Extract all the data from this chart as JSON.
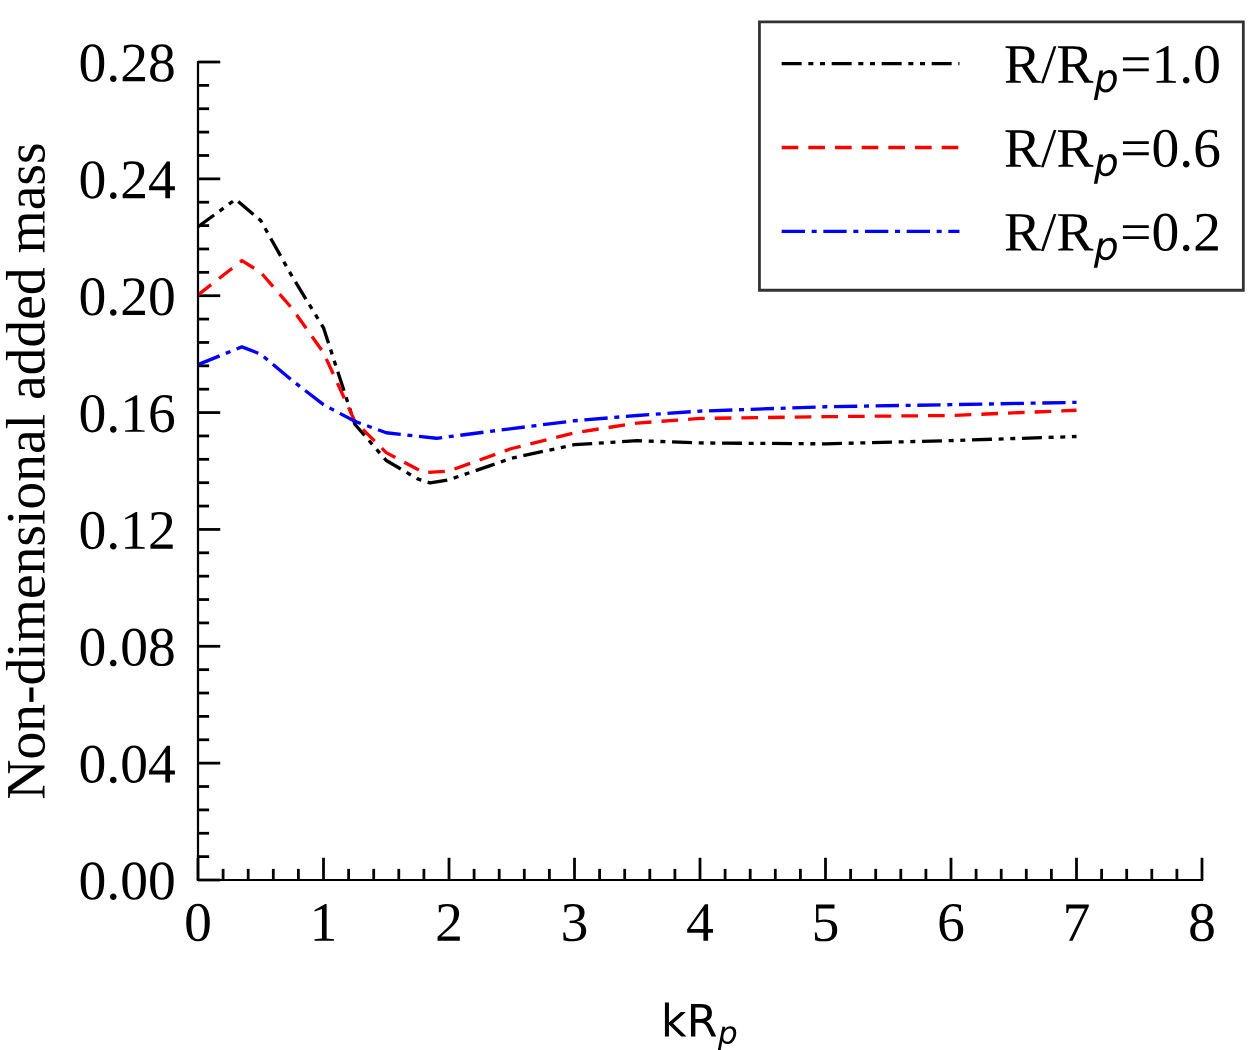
{
  "chart_data": {
    "type": "line",
    "xlabel": "kR$_{p}$",
    "ylabel": "Non-dimensional added mass",
    "series": [
      {
        "name": "R/R$_{p}$=1.0",
        "color": "#000000",
        "line_style": "dashdotdot",
        "x": [
          0,
          0.3,
          0.5,
          0.75,
          1,
          1.25,
          1.5,
          1.75,
          1.85,
          2,
          2.5,
          3,
          3.5,
          4,
          5,
          6,
          7
        ],
        "values": [
          0.2236,
          0.233,
          0.2257,
          0.2066,
          0.189,
          0.156,
          0.1436,
          0.1373,
          0.1359,
          0.137,
          0.1444,
          0.149,
          0.1504,
          0.1496,
          0.1493,
          0.1504,
          0.1518
        ]
      },
      {
        "name": "R/R$_{p}$=0.6",
        "color": "#ff0000",
        "line_style": "dashed",
        "x": [
          0,
          0.35,
          0.5,
          0.75,
          1,
          1.25,
          1.5,
          1.8,
          2,
          2.5,
          3,
          3.5,
          4,
          5,
          6,
          7
        ],
        "values": [
          0.2003,
          0.212,
          0.208,
          0.1956,
          0.1805,
          0.157,
          0.1463,
          0.1394,
          0.14,
          0.1477,
          0.1531,
          0.1564,
          0.158,
          0.1586,
          0.159,
          0.1608
        ]
      },
      {
        "name": "R/R$_{p}$=0.2",
        "color": "#0000ff",
        "line_style": "dashdot",
        "x": [
          0,
          0.35,
          0.5,
          0.75,
          1,
          1.25,
          1.5,
          1.9,
          2.5,
          3,
          3.5,
          4,
          5,
          6,
          7
        ],
        "values": [
          0.1764,
          0.1825,
          0.18,
          0.171,
          0.1627,
          0.157,
          0.1531,
          0.1512,
          0.1545,
          0.1572,
          0.159,
          0.1605,
          0.162,
          0.1627,
          0.1635
        ]
      }
    ],
    "xlim": [
      0,
      8
    ],
    "ylim": [
      0,
      0.28
    ],
    "xticks": [
      0,
      {
        "value": 0.2,
        "label": null
      },
      {
        "value": 0.4,
        "label": null
      },
      {
        "value": 0.6,
        "label": null
      },
      {
        "value": 0.8,
        "label": null
      },
      1,
      {
        "value": 1.2,
        "label": null
      },
      {
        "value": 1.4,
        "label": null
      },
      {
        "value": 1.6,
        "label": null
      },
      {
        "value": 1.8,
        "label": null
      },
      2,
      {
        "value": 2.2,
        "label": null
      },
      {
        "value": 2.4,
        "label": null
      },
      {
        "value": 2.6,
        "label": null
      },
      {
        "value": 2.8,
        "label": null
      },
      3,
      {
        "value": 3.2,
        "label": null
      },
      {
        "value": 3.4,
        "label": null
      },
      {
        "value": 3.6,
        "label": null
      },
      {
        "value": 3.8,
        "label": null
      },
      4,
      {
        "value": 4.2,
        "label": null
      },
      {
        "value": 4.4,
        "label": null
      },
      {
        "value": 4.6,
        "label": null
      },
      {
        "value": 4.8,
        "label": null
      },
      5,
      {
        "value": 5.2,
        "label": null
      },
      {
        "value": 5.4,
        "label": null
      },
      {
        "value": 5.6,
        "label": null
      },
      {
        "value": 5.8,
        "label": null
      },
      6,
      {
        "value": 6.2,
        "label": null
      },
      {
        "value": 6.4,
        "label": null
      },
      {
        "value": 6.6,
        "label": null
      },
      {
        "value": 6.8,
        "label": null
      },
      7,
      {
        "value": 7.2,
        "label": null
      },
      {
        "value": 7.4,
        "label": null
      },
      {
        "value": 7.6,
        "label": null
      },
      {
        "value": 7.8,
        "label": null
      },
      8
    ],
    "yticks": [
      {
        "value": 0,
        "label": "0.00"
      },
      {
        "value": 0.008,
        "label": null
      },
      {
        "value": 0.016,
        "label": null
      },
      {
        "value": 0.024,
        "label": null
      },
      {
        "value": 0.032,
        "label": null
      },
      {
        "value": 0.04,
        "label": "0.04"
      },
      {
        "value": 0.048,
        "label": null
      },
      {
        "value": 0.056,
        "label": null
      },
      {
        "value": 0.064,
        "label": null
      },
      {
        "value": 0.072,
        "label": null
      },
      {
        "value": 0.08,
        "label": "0.08"
      },
      {
        "value": 0.088,
        "label": null
      },
      {
        "value": 0.096,
        "label": null
      },
      {
        "value": 0.104,
        "label": null
      },
      {
        "value": 0.112,
        "label": null
      },
      {
        "value": 0.12,
        "label": "0.12"
      },
      {
        "value": 0.128,
        "label": null
      },
      {
        "value": 0.136,
        "label": null
      },
      {
        "value": 0.144,
        "label": null
      },
      {
        "value": 0.152,
        "label": null
      },
      {
        "value": 0.16,
        "label": "0.16"
      },
      {
        "value": 0.168,
        "label": null
      },
      {
        "value": 0.176,
        "label": null
      },
      {
        "value": 0.184,
        "label": null
      },
      {
        "value": 0.192,
        "label": null
      },
      {
        "value": 0.2,
        "label": "0.20"
      },
      {
        "value": 0.208,
        "label": null
      },
      {
        "value": 0.216,
        "label": null
      },
      {
        "value": 0.224,
        "label": null
      },
      {
        "value": 0.232,
        "label": null
      },
      {
        "value": 0.24,
        "label": "0.24"
      },
      {
        "value": 0.248,
        "label": null
      },
      {
        "value": 0.256,
        "label": null
      },
      {
        "value": 0.264,
        "label": null
      },
      {
        "value": 0.272,
        "label": null
      },
      {
        "value": 0.28,
        "label": "0.28"
      }
    ],
    "legend": "top right",
    "grid": false
  }
}
